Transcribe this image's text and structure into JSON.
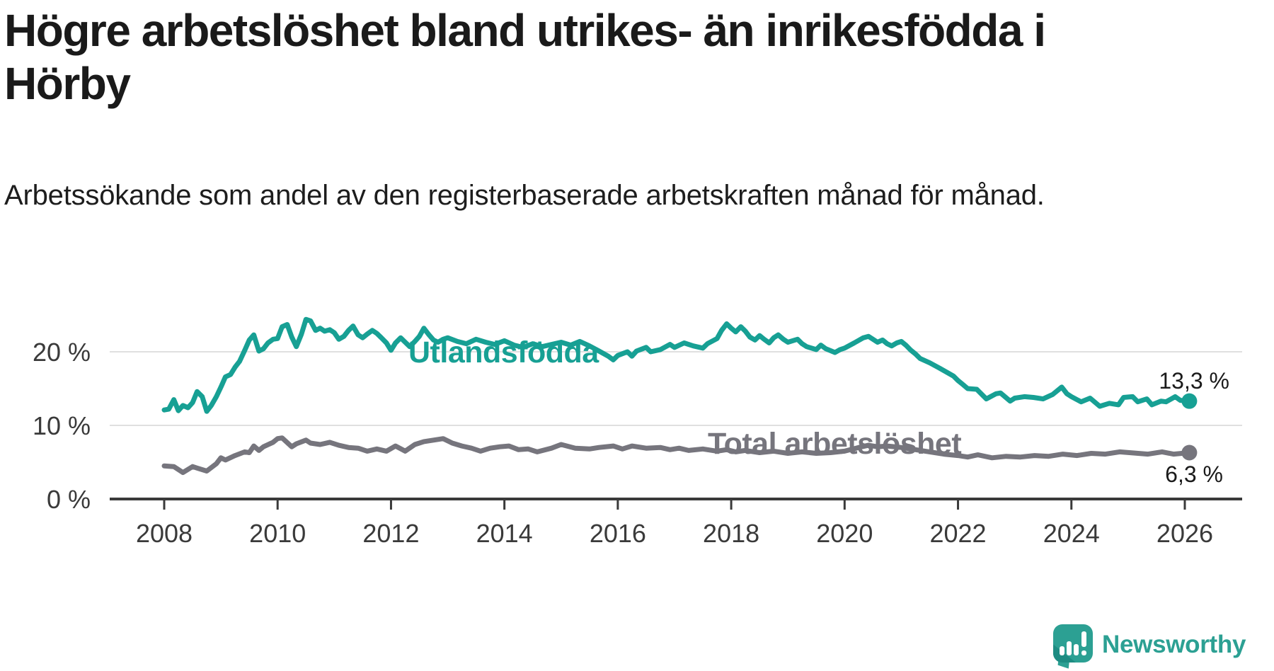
{
  "title": "Högre arbetslöshet bland utrikes- än inrikesfödda i Hörby",
  "subtitle": "Arbetssökande som andel av den registerbaserade arbetskraften månad för månad.",
  "branding": {
    "logo_text": "Newsworthy",
    "brand_color": "#2ca093"
  },
  "colors": {
    "title_text": "#1a1a1a",
    "axis_text": "#3a3a3a",
    "gridline": "#e0e0e0",
    "zero_axis": "#3a3a3a",
    "background": "#ffffff"
  },
  "chart_data": {
    "type": "line",
    "unit": "%",
    "x_axis": {
      "ticks": [
        "2008",
        "2010",
        "2012",
        "2014",
        "2016",
        "2018",
        "2020",
        "2022",
        "2024",
        "2026"
      ],
      "range": [
        2007.6,
        2027.0
      ]
    },
    "y_axis": {
      "ticks": [
        {
          "value": 0,
          "label": "0 %"
        },
        {
          "value": 10,
          "label": "10 %"
        },
        {
          "value": 20,
          "label": "20 %"
        }
      ],
      "range": [
        0,
        26
      ],
      "grid": true
    },
    "legend_position": "inline-labels",
    "series": [
      {
        "name": "Utlandsfödda",
        "color": "#17a094",
        "end_value": 13.3,
        "end_value_label": "13,3 %",
        "points": [
          [
            2008.0,
            12.1
          ],
          [
            2008.08,
            12.2
          ],
          [
            2008.17,
            13.5
          ],
          [
            2008.25,
            12.0
          ],
          [
            2008.33,
            12.7
          ],
          [
            2008.42,
            12.4
          ],
          [
            2008.5,
            13.1
          ],
          [
            2008.58,
            14.6
          ],
          [
            2008.67,
            13.9
          ],
          [
            2008.75,
            11.9
          ],
          [
            2008.83,
            12.7
          ],
          [
            2008.92,
            13.9
          ],
          [
            2009.0,
            15.2
          ],
          [
            2009.08,
            16.6
          ],
          [
            2009.17,
            16.9
          ],
          [
            2009.25,
            17.9
          ],
          [
            2009.33,
            18.7
          ],
          [
            2009.42,
            20.2
          ],
          [
            2009.5,
            21.6
          ],
          [
            2009.58,
            22.3
          ],
          [
            2009.67,
            20.1
          ],
          [
            2009.75,
            20.4
          ],
          [
            2009.83,
            21.2
          ],
          [
            2009.92,
            21.7
          ],
          [
            2010.0,
            21.8
          ],
          [
            2010.08,
            23.4
          ],
          [
            2010.17,
            23.7
          ],
          [
            2010.25,
            22.0
          ],
          [
            2010.33,
            20.7
          ],
          [
            2010.42,
            22.4
          ],
          [
            2010.5,
            24.4
          ],
          [
            2010.58,
            24.2
          ],
          [
            2010.67,
            22.9
          ],
          [
            2010.75,
            23.2
          ],
          [
            2010.83,
            22.8
          ],
          [
            2010.92,
            23.0
          ],
          [
            2011.0,
            22.6
          ],
          [
            2011.08,
            21.7
          ],
          [
            2011.17,
            22.1
          ],
          [
            2011.25,
            22.9
          ],
          [
            2011.33,
            23.5
          ],
          [
            2011.42,
            22.3
          ],
          [
            2011.5,
            21.9
          ],
          [
            2011.58,
            22.4
          ],
          [
            2011.67,
            22.9
          ],
          [
            2011.75,
            22.5
          ],
          [
            2011.83,
            21.9
          ],
          [
            2011.92,
            21.2
          ],
          [
            2012.0,
            20.2
          ],
          [
            2012.08,
            21.2
          ],
          [
            2012.17,
            21.9
          ],
          [
            2012.25,
            21.3
          ],
          [
            2012.33,
            20.7
          ],
          [
            2012.42,
            21.4
          ],
          [
            2012.5,
            22.1
          ],
          [
            2012.58,
            23.2
          ],
          [
            2012.67,
            22.3
          ],
          [
            2012.75,
            21.6
          ],
          [
            2012.83,
            21.3
          ],
          [
            2012.92,
            21.7
          ],
          [
            2013.0,
            21.9
          ],
          [
            2013.17,
            21.4
          ],
          [
            2013.33,
            21.1
          ],
          [
            2013.5,
            21.7
          ],
          [
            2013.67,
            21.3
          ],
          [
            2013.83,
            21.0
          ],
          [
            2014.0,
            21.5
          ],
          [
            2014.17,
            20.9
          ],
          [
            2014.33,
            20.6
          ],
          [
            2014.5,
            21.1
          ],
          [
            2014.67,
            20.7
          ],
          [
            2014.83,
            21.0
          ],
          [
            2015.0,
            21.3
          ],
          [
            2015.17,
            20.9
          ],
          [
            2015.33,
            21.4
          ],
          [
            2015.5,
            20.8
          ],
          [
            2015.67,
            20.1
          ],
          [
            2015.83,
            19.4
          ],
          [
            2015.92,
            18.9
          ],
          [
            2016.0,
            19.5
          ],
          [
            2016.17,
            20.0
          ],
          [
            2016.25,
            19.4
          ],
          [
            2016.33,
            20.1
          ],
          [
            2016.5,
            20.6
          ],
          [
            2016.58,
            20.0
          ],
          [
            2016.75,
            20.3
          ],
          [
            2016.92,
            21.0
          ],
          [
            2017.0,
            20.6
          ],
          [
            2017.17,
            21.2
          ],
          [
            2017.33,
            20.8
          ],
          [
            2017.5,
            20.5
          ],
          [
            2017.58,
            21.1
          ],
          [
            2017.75,
            21.8
          ],
          [
            2017.83,
            22.9
          ],
          [
            2017.92,
            23.8
          ],
          [
            2018.0,
            23.2
          ],
          [
            2018.08,
            22.7
          ],
          [
            2018.17,
            23.4
          ],
          [
            2018.25,
            22.8
          ],
          [
            2018.33,
            22.0
          ],
          [
            2018.42,
            21.6
          ],
          [
            2018.5,
            22.2
          ],
          [
            2018.58,
            21.7
          ],
          [
            2018.67,
            21.2
          ],
          [
            2018.75,
            21.9
          ],
          [
            2018.83,
            22.3
          ],
          [
            2018.92,
            21.7
          ],
          [
            2019.0,
            21.3
          ],
          [
            2019.17,
            21.7
          ],
          [
            2019.25,
            21.1
          ],
          [
            2019.33,
            20.7
          ],
          [
            2019.5,
            20.3
          ],
          [
            2019.58,
            20.9
          ],
          [
            2019.67,
            20.4
          ],
          [
            2019.83,
            19.9
          ],
          [
            2019.92,
            20.3
          ],
          [
            2020.0,
            20.5
          ],
          [
            2020.17,
            21.2
          ],
          [
            2020.33,
            21.9
          ],
          [
            2020.42,
            22.1
          ],
          [
            2020.5,
            21.7
          ],
          [
            2020.58,
            21.3
          ],
          [
            2020.67,
            21.6
          ],
          [
            2020.75,
            21.1
          ],
          [
            2020.83,
            20.8
          ],
          [
            2020.92,
            21.2
          ],
          [
            2021.0,
            21.4
          ],
          [
            2021.08,
            20.9
          ],
          [
            2021.17,
            20.2
          ],
          [
            2021.25,
            19.7
          ],
          [
            2021.33,
            19.1
          ],
          [
            2021.5,
            18.5
          ],
          [
            2021.67,
            17.8
          ],
          [
            2021.83,
            17.1
          ],
          [
            2021.92,
            16.7
          ],
          [
            2022.0,
            16.1
          ],
          [
            2022.08,
            15.6
          ],
          [
            2022.17,
            15.0
          ],
          [
            2022.33,
            14.9
          ],
          [
            2022.5,
            13.6
          ],
          [
            2022.67,
            14.3
          ],
          [
            2022.75,
            14.4
          ],
          [
            2022.92,
            13.3
          ],
          [
            2023.0,
            13.7
          ],
          [
            2023.17,
            13.9
          ],
          [
            2023.33,
            13.8
          ],
          [
            2023.5,
            13.6
          ],
          [
            2023.67,
            14.2
          ],
          [
            2023.83,
            15.2
          ],
          [
            2023.92,
            14.3
          ],
          [
            2024.0,
            13.9
          ],
          [
            2024.17,
            13.2
          ],
          [
            2024.33,
            13.7
          ],
          [
            2024.5,
            12.6
          ],
          [
            2024.67,
            13.0
          ],
          [
            2024.83,
            12.8
          ],
          [
            2024.92,
            13.8
          ],
          [
            2025.08,
            13.9
          ],
          [
            2025.17,
            13.2
          ],
          [
            2025.33,
            13.6
          ],
          [
            2025.42,
            12.8
          ],
          [
            2025.58,
            13.3
          ],
          [
            2025.67,
            13.2
          ],
          [
            2025.83,
            13.9
          ],
          [
            2025.92,
            13.4
          ],
          [
            2026.08,
            13.3
          ]
        ]
      },
      {
        "name": "Total arbetslöshet",
        "color": "#76757d",
        "end_value": 6.3,
        "end_value_label": "6,3 %",
        "points": [
          [
            2008.0,
            4.5
          ],
          [
            2008.17,
            4.4
          ],
          [
            2008.33,
            3.6
          ],
          [
            2008.5,
            4.4
          ],
          [
            2008.58,
            4.2
          ],
          [
            2008.75,
            3.8
          ],
          [
            2008.92,
            4.8
          ],
          [
            2009.0,
            5.6
          ],
          [
            2009.08,
            5.3
          ],
          [
            2009.25,
            5.9
          ],
          [
            2009.42,
            6.4
          ],
          [
            2009.5,
            6.3
          ],
          [
            2009.58,
            7.2
          ],
          [
            2009.67,
            6.6
          ],
          [
            2009.75,
            7.1
          ],
          [
            2009.92,
            7.7
          ],
          [
            2010.0,
            8.2
          ],
          [
            2010.08,
            8.3
          ],
          [
            2010.25,
            7.1
          ],
          [
            2010.33,
            7.5
          ],
          [
            2010.5,
            8.0
          ],
          [
            2010.58,
            7.6
          ],
          [
            2010.75,
            7.4
          ],
          [
            2010.92,
            7.7
          ],
          [
            2011.08,
            7.3
          ],
          [
            2011.25,
            7.0
          ],
          [
            2011.42,
            6.9
          ],
          [
            2011.58,
            6.5
          ],
          [
            2011.75,
            6.8
          ],
          [
            2011.92,
            6.5
          ],
          [
            2012.08,
            7.2
          ],
          [
            2012.25,
            6.5
          ],
          [
            2012.42,
            7.4
          ],
          [
            2012.58,
            7.8
          ],
          [
            2012.75,
            8.0
          ],
          [
            2012.92,
            8.2
          ],
          [
            2013.08,
            7.6
          ],
          [
            2013.25,
            7.2
          ],
          [
            2013.42,
            6.9
          ],
          [
            2013.58,
            6.5
          ],
          [
            2013.75,
            6.9
          ],
          [
            2013.92,
            7.1
          ],
          [
            2014.08,
            7.2
          ],
          [
            2014.25,
            6.7
          ],
          [
            2014.42,
            6.8
          ],
          [
            2014.58,
            6.4
          ],
          [
            2014.83,
            6.9
          ],
          [
            2015.0,
            7.4
          ],
          [
            2015.25,
            6.9
          ],
          [
            2015.5,
            6.8
          ],
          [
            2015.67,
            7.0
          ],
          [
            2015.92,
            7.2
          ],
          [
            2016.08,
            6.8
          ],
          [
            2016.25,
            7.2
          ],
          [
            2016.5,
            6.9
          ],
          [
            2016.75,
            7.0
          ],
          [
            2016.92,
            6.7
          ],
          [
            2017.08,
            6.9
          ],
          [
            2017.25,
            6.6
          ],
          [
            2017.5,
            6.8
          ],
          [
            2017.75,
            6.5
          ],
          [
            2017.92,
            6.7
          ],
          [
            2018.08,
            6.4
          ],
          [
            2018.25,
            6.6
          ],
          [
            2018.5,
            6.3
          ],
          [
            2018.75,
            6.5
          ],
          [
            2019.0,
            6.2
          ],
          [
            2019.25,
            6.4
          ],
          [
            2019.5,
            6.2
          ],
          [
            2019.75,
            6.3
          ],
          [
            2020.0,
            6.5
          ],
          [
            2020.25,
            7.0
          ],
          [
            2020.42,
            7.3
          ],
          [
            2020.58,
            7.1
          ],
          [
            2020.75,
            7.2
          ],
          [
            2021.0,
            7.0
          ],
          [
            2021.25,
            6.7
          ],
          [
            2021.5,
            6.4
          ],
          [
            2021.75,
            6.1
          ],
          [
            2022.0,
            5.9
          ],
          [
            2022.17,
            5.7
          ],
          [
            2022.35,
            6.0
          ],
          [
            2022.6,
            5.6
          ],
          [
            2022.85,
            5.8
          ],
          [
            2023.1,
            5.7
          ],
          [
            2023.35,
            5.9
          ],
          [
            2023.6,
            5.8
          ],
          [
            2023.85,
            6.1
          ],
          [
            2024.1,
            5.9
          ],
          [
            2024.35,
            6.2
          ],
          [
            2024.6,
            6.1
          ],
          [
            2024.85,
            6.4
          ],
          [
            2025.1,
            6.25
          ],
          [
            2025.35,
            6.1
          ],
          [
            2025.6,
            6.4
          ],
          [
            2025.8,
            6.1
          ],
          [
            2026.08,
            6.3
          ]
        ]
      }
    ]
  }
}
